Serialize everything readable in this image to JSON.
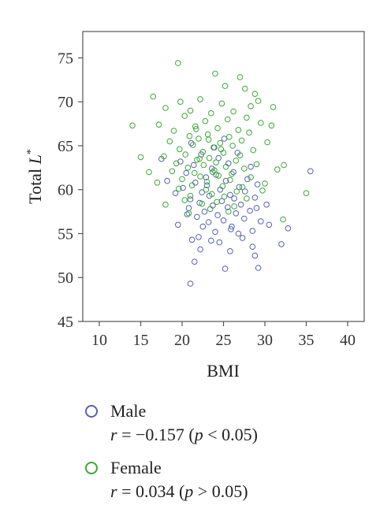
{
  "chart_data": {
    "type": "scatter",
    "title": "",
    "xlabel": "BMI",
    "ylabel_main": "Total ",
    "ylabel_var": "L",
    "ylabel_sup": "*",
    "xlim": [
      8,
      42
    ],
    "ylim": [
      45,
      78
    ],
    "xticks": [
      10,
      15,
      20,
      25,
      30,
      35,
      40
    ],
    "yticks": [
      45,
      50,
      55,
      60,
      65,
      70,
      75
    ],
    "grid": false,
    "legend_position": "bottom",
    "series": [
      {
        "name": "Male",
        "color": "#5561b8",
        "stat_r": "r",
        "stat_value": " = −0.157 (",
        "stat_p": "p",
        "stat_tail": " < 0.05)",
        "points": [
          [
            21.0,
            49.3
          ],
          [
            25.2,
            51.0
          ],
          [
            29.2,
            51.1
          ],
          [
            28.8,
            52.5
          ],
          [
            21.5,
            51.8
          ],
          [
            25.8,
            53.0
          ],
          [
            32.0,
            53.8
          ],
          [
            28.5,
            53.5
          ],
          [
            23.5,
            54.2
          ],
          [
            24.5,
            54.0
          ],
          [
            21.2,
            54.3
          ],
          [
            22.0,
            54.6
          ],
          [
            26.8,
            55.0
          ],
          [
            24.0,
            55.2
          ],
          [
            32.8,
            55.6
          ],
          [
            28.5,
            55.3
          ],
          [
            22.5,
            55.8
          ],
          [
            26.0,
            55.8
          ],
          [
            19.5,
            56.0
          ],
          [
            23.2,
            56.3
          ],
          [
            25.0,
            56.5
          ],
          [
            27.5,
            56.7
          ],
          [
            29.5,
            56.4
          ],
          [
            21.8,
            56.9
          ],
          [
            24.3,
            57.1
          ],
          [
            26.5,
            57.3
          ],
          [
            22.7,
            57.5
          ],
          [
            28.2,
            57.6
          ],
          [
            20.8,
            57.9
          ],
          [
            25.5,
            58.0
          ],
          [
            23.7,
            58.2
          ],
          [
            27.1,
            58.3
          ],
          [
            30.2,
            58.3
          ],
          [
            22.1,
            58.5
          ],
          [
            24.8,
            58.7
          ],
          [
            21.0,
            58.9
          ],
          [
            26.3,
            59.0
          ],
          [
            28.8,
            59.1
          ],
          [
            23.3,
            59.3
          ],
          [
            25.8,
            59.4
          ],
          [
            19.2,
            59.6
          ],
          [
            22.4,
            59.7
          ],
          [
            27.6,
            59.8
          ],
          [
            24.6,
            60.0
          ],
          [
            20.1,
            60.2
          ],
          [
            26.9,
            60.3
          ],
          [
            23.0,
            60.5
          ],
          [
            29.1,
            60.6
          ],
          [
            21.6,
            60.8
          ],
          [
            25.3,
            61.0
          ],
          [
            18.2,
            61.0
          ],
          [
            27.9,
            61.2
          ],
          [
            22.9,
            61.4
          ],
          [
            24.1,
            61.7
          ],
          [
            20.5,
            61.9
          ],
          [
            26.2,
            62.0
          ],
          [
            35.5,
            62.1
          ],
          [
            23.6,
            62.4
          ],
          [
            28.3,
            62.6
          ],
          [
            21.4,
            62.8
          ],
          [
            25.6,
            63.0
          ],
          [
            19.8,
            63.2
          ],
          [
            24.4,
            63.6
          ],
          [
            22.3,
            64.0
          ],
          [
            26.7,
            64.2
          ],
          [
            23.9,
            64.8
          ],
          [
            21.1,
            65.3
          ],
          [
            25.1,
            65.8
          ],
          [
            17.5,
            63.5
          ],
          [
            20.6,
            57.2
          ],
          [
            30.5,
            56.0
          ],
          [
            27.3,
            54.5
          ],
          [
            22.2,
            53.2
          ],
          [
            25.9,
            55.5
          ],
          [
            29.0,
            57.9
          ]
        ]
      },
      {
        "name": "Female",
        "color": "#3aa935",
        "stat_r": "r",
        "stat_value": " = 0.034 (",
        "stat_p": "p",
        "stat_tail": " > 0.05)",
        "points": [
          [
            19.5,
            74.4
          ],
          [
            24.0,
            73.2
          ],
          [
            27.0,
            72.8
          ],
          [
            25.2,
            71.8
          ],
          [
            27.6,
            71.5
          ],
          [
            28.8,
            70.9
          ],
          [
            16.5,
            70.6
          ],
          [
            22.2,
            70.3
          ],
          [
            29.2,
            70.1
          ],
          [
            19.8,
            70.0
          ],
          [
            24.8,
            69.8
          ],
          [
            28.3,
            69.5
          ],
          [
            31.0,
            69.4
          ],
          [
            18.0,
            69.3
          ],
          [
            21.0,
            69.0
          ],
          [
            26.2,
            68.9
          ],
          [
            23.5,
            68.7
          ],
          [
            20.3,
            68.4
          ],
          [
            27.8,
            68.2
          ],
          [
            25.5,
            68.0
          ],
          [
            22.8,
            67.8
          ],
          [
            29.5,
            67.6
          ],
          [
            17.2,
            67.4
          ],
          [
            14.0,
            67.3
          ],
          [
            30.8,
            67.3
          ],
          [
            21.6,
            67.2
          ],
          [
            24.3,
            67.0
          ],
          [
            26.8,
            66.8
          ],
          [
            19.0,
            66.7
          ],
          [
            28.1,
            66.5
          ],
          [
            23.1,
            66.3
          ],
          [
            20.9,
            66.1
          ],
          [
            25.7,
            66.0
          ],
          [
            22.0,
            65.8
          ],
          [
            27.2,
            65.6
          ],
          [
            18.5,
            65.5
          ],
          [
            30.3,
            65.4
          ],
          [
            24.6,
            65.3
          ],
          [
            21.3,
            65.1
          ],
          [
            26.1,
            65.0
          ],
          [
            23.8,
            64.8
          ],
          [
            19.7,
            64.6
          ],
          [
            28.6,
            64.5
          ],
          [
            22.5,
            64.3
          ],
          [
            25.0,
            64.2
          ],
          [
            20.4,
            64.0
          ],
          [
            27.0,
            63.9
          ],
          [
            17.8,
            63.8
          ],
          [
            15.0,
            63.7
          ],
          [
            23.3,
            63.6
          ],
          [
            21.8,
            63.4
          ],
          [
            26.5,
            63.3
          ],
          [
            24.1,
            63.1
          ],
          [
            19.3,
            63.0
          ],
          [
            29.0,
            62.9
          ],
          [
            22.6,
            62.8
          ],
          [
            25.3,
            62.6
          ],
          [
            20.7,
            62.5
          ],
          [
            27.5,
            62.4
          ],
          [
            23.9,
            62.2
          ],
          [
            18.8,
            62.1
          ],
          [
            16.0,
            62.0
          ],
          [
            21.5,
            61.9
          ],
          [
            26.0,
            61.8
          ],
          [
            24.4,
            61.6
          ],
          [
            22.2,
            61.5
          ],
          [
            28.3,
            61.4
          ],
          [
            20.0,
            61.2
          ],
          [
            25.8,
            61.1
          ],
          [
            23.0,
            60.9
          ],
          [
            17.0,
            60.8
          ],
          [
            30.0,
            60.7
          ],
          [
            21.2,
            60.5
          ],
          [
            24.9,
            60.4
          ],
          [
            27.3,
            60.3
          ],
          [
            19.6,
            60.1
          ],
          [
            22.9,
            60.0
          ],
          [
            26.6,
            59.8
          ],
          [
            29.7,
            59.9
          ],
          [
            35.0,
            59.6
          ],
          [
            23.6,
            59.5
          ],
          [
            21.0,
            59.3
          ],
          [
            25.1,
            59.2
          ],
          [
            27.8,
            59.0
          ],
          [
            20.3,
            58.8
          ],
          [
            24.2,
            58.6
          ],
          [
            22.4,
            58.4
          ],
          [
            18.0,
            58.3
          ],
          [
            26.3,
            58.1
          ],
          [
            31.5,
            62.3
          ],
          [
            32.3,
            62.8
          ],
          [
            23.4,
            57.8
          ],
          [
            25.6,
            57.5
          ],
          [
            20.8,
            57.3
          ],
          [
            32.2,
            56.6
          ],
          [
            21.7,
            66.9
          ],
          [
            23.2,
            65.7
          ],
          [
            24.7,
            64.6
          ],
          [
            22.1,
            63.5
          ],
          [
            23.7,
            62.0
          ]
        ]
      }
    ]
  }
}
